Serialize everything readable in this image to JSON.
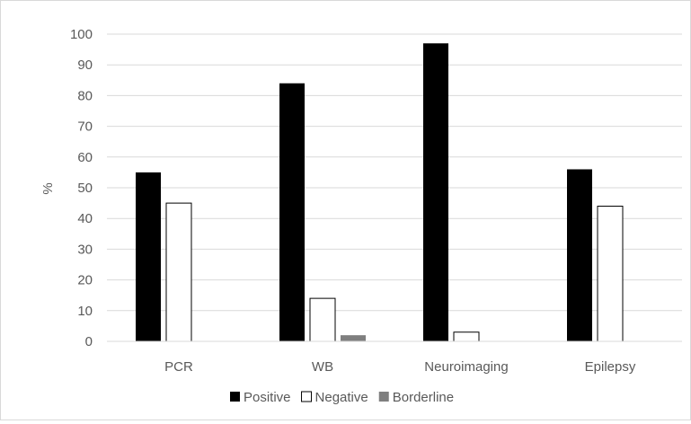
{
  "chart_data": {
    "type": "bar",
    "title": "",
    "xlabel": "",
    "ylabel": "%",
    "ylim": [
      0,
      100
    ],
    "yticks": [
      0,
      10,
      20,
      30,
      40,
      50,
      60,
      70,
      80,
      90,
      100
    ],
    "grid": true,
    "legend_position": "bottom",
    "categories": [
      "PCR",
      "WB",
      "Neuroimaging",
      "Epilepsy"
    ],
    "series": [
      {
        "name": "Positive",
        "color": "#000000",
        "values": [
          55,
          84,
          97,
          56
        ]
      },
      {
        "name": "Negative",
        "color": "#ffffff",
        "values": [
          45,
          14,
          3,
          44
        ]
      },
      {
        "name": "Borderline",
        "color": "#7f7f7f",
        "values": [
          0,
          2,
          0,
          0
        ]
      }
    ]
  }
}
